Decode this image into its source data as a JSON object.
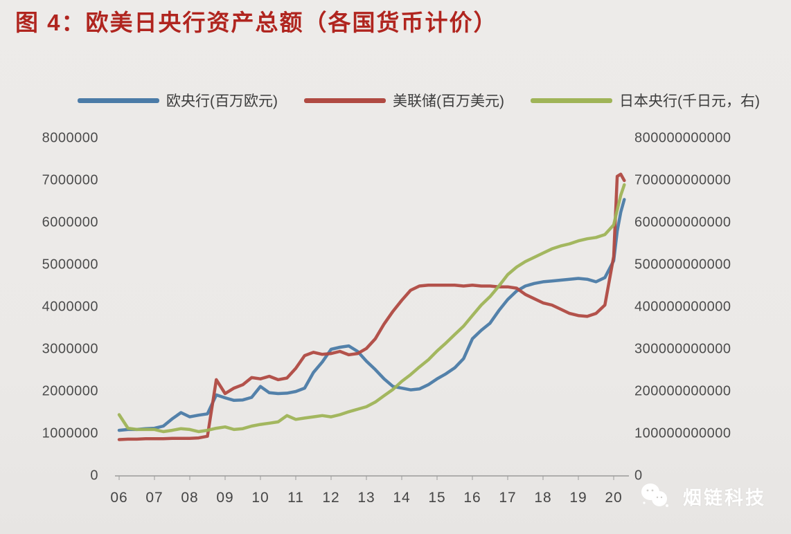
{
  "header": {
    "title": "图 4：欧美日央行资产总额（各国货币计价）",
    "title_color": "#b0251f"
  },
  "watermark": {
    "text": "烟链科技",
    "icon": "chat-bubbles-icon",
    "color": "#ffffff"
  },
  "colors": {
    "background": "#ebe9e7",
    "axis": "#9a9a9a",
    "tick_text": "#4c4c4c",
    "ecb_blue": "#4b7ba7",
    "fed_red": "#b04a42",
    "boj_green": "#9fb457"
  },
  "chart_data": {
    "type": "line",
    "title": "欧美日央行资产总额（各国货币计价）",
    "legend_position": "top",
    "grid": false,
    "x_label": "",
    "x_tick_labels": [
      "06",
      "07",
      "08",
      "09",
      "10",
      "11",
      "12",
      "13",
      "14",
      "15",
      "16",
      "17",
      "18",
      "19",
      "20"
    ],
    "x": [
      2006.0,
      2006.25,
      2006.5,
      2006.75,
      2007.0,
      2007.25,
      2007.5,
      2007.75,
      2008.0,
      2008.25,
      2008.5,
      2008.75,
      2009.0,
      2009.25,
      2009.5,
      2009.75,
      2010.0,
      2010.25,
      2010.5,
      2010.75,
      2011.0,
      2011.25,
      2011.5,
      2011.75,
      2012.0,
      2012.25,
      2012.5,
      2012.75,
      2013.0,
      2013.25,
      2013.5,
      2013.75,
      2014.0,
      2014.25,
      2014.5,
      2014.75,
      2015.0,
      2015.25,
      2015.5,
      2015.75,
      2016.0,
      2016.25,
      2016.5,
      2016.75,
      2017.0,
      2017.25,
      2017.5,
      2017.75,
      2018.0,
      2018.25,
      2018.5,
      2018.75,
      2019.0,
      2019.25,
      2019.5,
      2019.75,
      2020.0,
      2020.1,
      2020.2,
      2020.3
    ],
    "left_axis": {
      "min": 0,
      "max": 8000000,
      "step": 1000000,
      "tick_labels": [
        "8000000",
        "7000000",
        "6000000",
        "5000000",
        "4000000",
        "3000000",
        "2000000",
        "1000000",
        "0"
      ]
    },
    "right_axis": {
      "min": 0,
      "max": 800000000000,
      "step": 100000000000,
      "tick_labels": [
        "800000000000",
        "700000000000",
        "600000000000",
        "500000000000",
        "400000000000",
        "300000000000",
        "200000000000",
        "100000000000",
        "0"
      ]
    },
    "series": [
      {
        "name": "欧央行(百万欧元)",
        "axis": "left",
        "color": "#4b7ba7",
        "values": [
          1080000,
          1100000,
          1100000,
          1120000,
          1130000,
          1180000,
          1350000,
          1500000,
          1400000,
          1440000,
          1470000,
          1920000,
          1850000,
          1790000,
          1800000,
          1860000,
          2120000,
          1970000,
          1950000,
          1960000,
          2000000,
          2080000,
          2450000,
          2700000,
          3000000,
          3050000,
          3080000,
          2950000,
          2720000,
          2520000,
          2300000,
          2120000,
          2080000,
          2040000,
          2060000,
          2160000,
          2300000,
          2420000,
          2560000,
          2780000,
          3250000,
          3450000,
          3620000,
          3920000,
          4180000,
          4380000,
          4500000,
          4560000,
          4600000,
          4620000,
          4640000,
          4660000,
          4680000,
          4660000,
          4600000,
          4700000,
          5100000,
          5800000,
          6250000,
          6550000
        ]
      },
      {
        "name": "美联储(百万美元)",
        "axis": "left",
        "color": "#b04a42",
        "values": [
          860000,
          870000,
          870000,
          880000,
          880000,
          880000,
          890000,
          890000,
          890000,
          900000,
          940000,
          2280000,
          1950000,
          2080000,
          2160000,
          2330000,
          2300000,
          2360000,
          2280000,
          2320000,
          2550000,
          2850000,
          2930000,
          2880000,
          2900000,
          2950000,
          2870000,
          2900000,
          3020000,
          3250000,
          3600000,
          3900000,
          4160000,
          4400000,
          4500000,
          4520000,
          4520000,
          4520000,
          4520000,
          4500000,
          4520000,
          4500000,
          4500000,
          4480000,
          4480000,
          4450000,
          4300000,
          4200000,
          4100000,
          4050000,
          3950000,
          3850000,
          3800000,
          3780000,
          3850000,
          4050000,
          5200000,
          7100000,
          7150000,
          7000000
        ]
      },
      {
        "name": "日本央行(千日元，右)",
        "axis": "right",
        "color": "#9fb457",
        "values": [
          145000000000,
          113000000000,
          110000000000,
          110000000000,
          110000000000,
          105000000000,
          108000000000,
          112000000000,
          110000000000,
          105000000000,
          108000000000,
          113000000000,
          116000000000,
          110000000000,
          112000000000,
          118000000000,
          122000000000,
          125000000000,
          128000000000,
          143000000000,
          134000000000,
          137000000000,
          140000000000,
          143000000000,
          140000000000,
          145000000000,
          152000000000,
          158000000000,
          164000000000,
          175000000000,
          190000000000,
          205000000000,
          224000000000,
          240000000000,
          258000000000,
          275000000000,
          296000000000,
          315000000000,
          335000000000,
          355000000000,
          380000000000,
          405000000000,
          425000000000,
          450000000000,
          477000000000,
          495000000000,
          508000000000,
          518000000000,
          528000000000,
          538000000000,
          545000000000,
          550000000000,
          557000000000,
          562000000000,
          565000000000,
          572000000000,
          595000000000,
          630000000000,
          665000000000,
          690000000000
        ]
      }
    ]
  }
}
